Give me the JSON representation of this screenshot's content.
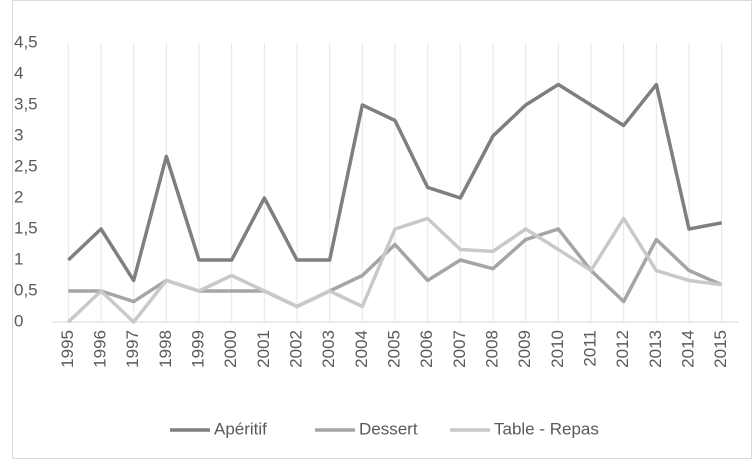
{
  "chart_data": {
    "type": "line",
    "categories": [
      "1995",
      "1996",
      "1997",
      "1998",
      "1999",
      "2000",
      "2001",
      "2002",
      "2003",
      "2004",
      "2005",
      "2006",
      "2007",
      "2008",
      "2009",
      "2010",
      "2011",
      "2012",
      "2013",
      "2014",
      "2015"
    ],
    "series": [
      {
        "name": "Apéritif",
        "color": "#7f7f7f",
        "values": [
          1.0,
          1.5,
          0.67,
          2.67,
          1.0,
          1.0,
          2.0,
          1.0,
          1.0,
          3.5,
          3.25,
          2.17,
          2.0,
          3.0,
          3.5,
          3.83,
          3.5,
          3.17,
          3.83,
          1.5,
          1.6
        ]
      },
      {
        "name": "Dessert",
        "color": "#a5a5a5",
        "values": [
          0.5,
          0.5,
          0.33,
          0.67,
          0.5,
          0.5,
          0.5,
          0.25,
          0.5,
          0.75,
          1.25,
          0.67,
          1.0,
          0.86,
          1.33,
          1.5,
          0.83,
          0.33,
          1.33,
          0.83,
          0.6
        ]
      },
      {
        "name": "Table - Repas",
        "color": "#c9c9c9",
        "values": [
          0,
          0.5,
          0,
          0.67,
          0.5,
          0.75,
          0.5,
          0.25,
          0.5,
          0.25,
          1.5,
          1.67,
          1.17,
          1.14,
          1.5,
          1.17,
          0.83,
          1.67,
          0.83,
          0.67,
          0.6
        ]
      }
    ],
    "ylim": [
      0,
      4.5
    ],
    "yticks": [
      0,
      {
        "value": 0.5,
        "label": "0,5"
      },
      1,
      {
        "value": 1.5,
        "label": "1,5"
      },
      2,
      {
        "value": 2.5,
        "label": "2,5"
      },
      3,
      {
        "value": 3.5,
        "label": "3,5"
      },
      4,
      {
        "value": 4.5,
        "label": "4,5"
      }
    ],
    "grid": true,
    "legend": "bottom"
  }
}
